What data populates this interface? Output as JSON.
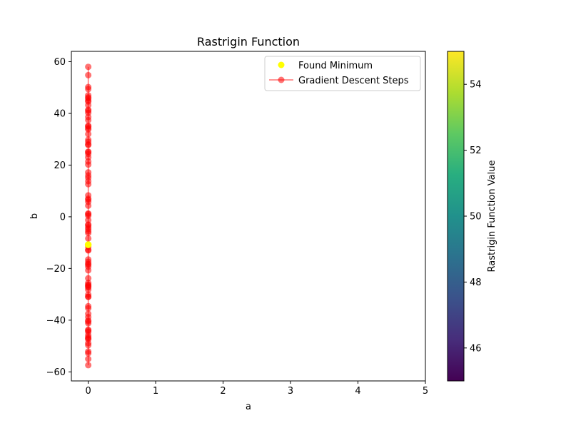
{
  "chart_data": {
    "type": "scatter",
    "title": "Rastrigin Function",
    "xlabel": "a",
    "ylabel": "b",
    "xlim": [
      -0.25,
      5
    ],
    "ylim": [
      -63.5,
      64
    ],
    "x_ticks": [
      "0",
      "1",
      "2",
      "3",
      "4",
      "5"
    ],
    "y_ticks": [
      "−60",
      "−40",
      "−20",
      "0",
      "20",
      "40",
      "60"
    ],
    "colorbar": {
      "label": "Rastrigin Function Value",
      "range": [
        45,
        55
      ],
      "ticks": [
        "46",
        "48",
        "50",
        "52",
        "54"
      ],
      "colormap": "viridis"
    },
    "legend": {
      "placement": "upper right",
      "entries": [
        "Found Minimum",
        "Gradient Descent Steps"
      ]
    },
    "series": [
      {
        "name": "Gradient Descent Steps",
        "color": "#ff0000",
        "marker": "circle",
        "line": true,
        "x": [
          0,
          0,
          0,
          0,
          0,
          0,
          0,
          0,
          0,
          0,
          0,
          0,
          0,
          0,
          0,
          0,
          0,
          0,
          0,
          0,
          0,
          0,
          0,
          0,
          0,
          0,
          0,
          0,
          0,
          0,
          0,
          0,
          0,
          0,
          0,
          0,
          0,
          0,
          0,
          0,
          0,
          0,
          0,
          0,
          0,
          0,
          0,
          0,
          0,
          0,
          0,
          0,
          0,
          0,
          0,
          0,
          0,
          0,
          0,
          0,
          0,
          0,
          0,
          0,
          0,
          0,
          0,
          0,
          0,
          0,
          0,
          0,
          0,
          0,
          0,
          0,
          0,
          0,
          0,
          0,
          0,
          0,
          0,
          0,
          0,
          0,
          0,
          0,
          0,
          0
        ],
        "y": [
          58,
          54.8,
          50.2,
          49.4,
          47,
          45.8,
          44.6,
          43.2,
          41.4,
          40.2,
          38.6,
          37.4,
          35.2,
          34.3,
          33.8,
          32,
          29.8,
          29,
          27.8,
          25.2,
          24.3,
          23,
          21.4,
          20.2,
          17.2,
          15.1,
          13.8,
          12.6,
          8.3,
          6.6,
          5.8,
          4.3,
          1.3,
          0.4,
          -1.3,
          -3.3,
          -4.1,
          -4.8,
          -5.6,
          -6.3,
          -8.4,
          -12.8,
          -16.5,
          -17.4,
          -18.2,
          -19.3,
          -20.7,
          -23.8,
          -25.6,
          -26.3,
          -27.3,
          -28.2,
          -30.1,
          -30.9,
          -34.6,
          -35.4,
          -37.5,
          -38.8,
          -40.1,
          -41.2,
          -43.7,
          -44.5,
          -45.8,
          -46.6,
          -47.4,
          -48.9,
          -49.7,
          -52.1,
          -52.8,
          -55,
          -57.4,
          -13,
          -11.6,
          46.2,
          45,
          41,
          35,
          28,
          25,
          16,
          7,
          1,
          -3,
          -18.5,
          -26.5,
          -31,
          -40.5,
          -44,
          -27,
          -47
        ]
      },
      {
        "name": "Found Minimum",
        "color": "#ffff00",
        "marker": "circle",
        "line": false,
        "x": [
          0
        ],
        "y": [
          -10.8
        ]
      }
    ]
  }
}
